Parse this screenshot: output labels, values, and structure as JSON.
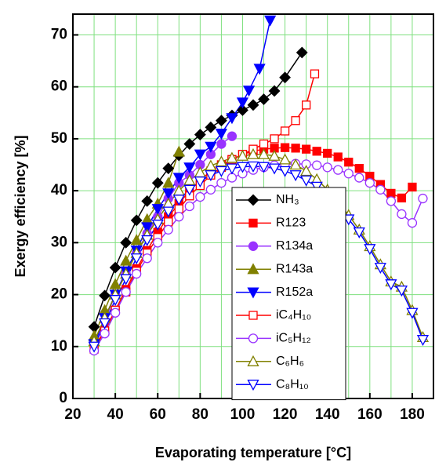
{
  "chart_data": {
    "type": "line",
    "xlabel": "Evaporating temperature [°C]",
    "ylabel": "Exergy efficiency [%]",
    "xlim": [
      20,
      190
    ],
    "ylim": [
      0,
      74
    ],
    "xticks": [
      20,
      40,
      60,
      80,
      100,
      120,
      140,
      160,
      180
    ],
    "yticks": [
      0,
      10,
      20,
      30,
      40,
      50,
      60,
      70
    ],
    "xgrid": [
      30,
      40,
      50,
      60,
      70,
      80,
      90,
      100,
      110,
      120,
      130,
      140,
      150,
      160,
      170,
      180
    ],
    "grid": true,
    "grid_color": "#7fe07f",
    "series": [
      {
        "name": "NH₃",
        "color": "#000000",
        "marker": "diamond",
        "filled": true,
        "x": [
          30,
          35,
          40,
          45,
          50,
          55,
          60,
          65,
          70,
          75,
          80,
          85,
          90,
          95,
          100,
          105,
          110,
          115,
          120,
          128
        ],
        "values": [
          13.8,
          19.8,
          25.2,
          30,
          34.3,
          38,
          41.5,
          44.3,
          46.8,
          49,
          50.8,
          52.2,
          53.5,
          54.5,
          55.5,
          56.5,
          57.6,
          59.2,
          61.8,
          66.6
        ]
      },
      {
        "name": "R123",
        "color": "#ff0000",
        "marker": "square",
        "filled": true,
        "x": [
          30,
          35,
          40,
          45,
          50,
          55,
          60,
          65,
          70,
          75,
          80,
          85,
          90,
          95,
          100,
          105,
          110,
          115,
          120,
          125,
          130,
          135,
          140,
          145,
          150,
          155,
          160,
          165,
          170,
          175,
          180
        ],
        "values": [
          10,
          13,
          17,
          21,
          25,
          28.5,
          32,
          35,
          37.5,
          40,
          42,
          43.8,
          45,
          46,
          47,
          47.6,
          48,
          48.2,
          48.3,
          48.2,
          48,
          47.6,
          47.2,
          46.5,
          45.5,
          44.3,
          42.8,
          41.2,
          39.5,
          38.6,
          40.7
        ]
      },
      {
        "name": "R134a",
        "color": "#9933ff",
        "marker": "circle",
        "filled": true,
        "x": [
          30,
          35,
          40,
          45,
          50,
          55,
          60,
          65,
          70,
          75,
          80,
          85,
          90,
          95
        ],
        "values": [
          10.5,
          15,
          20,
          24,
          28,
          31.8,
          35,
          38.5,
          41.5,
          43,
          45,
          47,
          49,
          50.5
        ]
      },
      {
        "name": "R143a",
        "color": "#808000",
        "marker": "triangle-up",
        "filled": true,
        "x": [
          30,
          35,
          40,
          45,
          50,
          55,
          60,
          65,
          70
        ],
        "values": [
          12,
          17,
          22,
          26.5,
          30.5,
          34.5,
          37.5,
          41.5,
          47.5
        ]
      },
      {
        "name": "R152a",
        "color": "#0000ff",
        "marker": "triangle-down",
        "filled": true,
        "x": [
          30,
          35,
          40,
          45,
          50,
          55,
          60,
          65,
          70,
          75,
          80,
          85,
          90,
          95,
          100,
          103,
          108,
          113
        ],
        "values": [
          10.5,
          15.5,
          20,
          24.5,
          28.5,
          33,
          36.5,
          39.5,
          42.5,
          44.5,
          47,
          48.5,
          51,
          54,
          57,
          59.3,
          63.5,
          72.8
        ]
      },
      {
        "name": "iC₄H₁₀",
        "color": "#ff0000",
        "marker": "square",
        "filled": false,
        "x": [
          30,
          35,
          40,
          45,
          50,
          55,
          60,
          65,
          70,
          75,
          80,
          85,
          90,
          95,
          100,
          105,
          110,
          115,
          120,
          125,
          130,
          134
        ],
        "values": [
          9.5,
          13,
          17,
          20.5,
          24.5,
          28,
          31,
          34,
          36.5,
          39,
          41,
          43,
          44.5,
          46,
          47,
          48,
          49,
          50,
          51.5,
          53.5,
          56.5,
          62.5
        ]
      },
      {
        "name": "iC₅H₁₂",
        "color": "#9933ff",
        "marker": "circle",
        "filled": false,
        "x": [
          30,
          35,
          40,
          45,
          50,
          55,
          60,
          65,
          70,
          75,
          80,
          85,
          90,
          95,
          100,
          105,
          110,
          115,
          120,
          125,
          130,
          135,
          140,
          145,
          150,
          155,
          160,
          165,
          170,
          175,
          180,
          185
        ],
        "values": [
          9.2,
          12.5,
          16.5,
          20.5,
          24,
          27,
          30,
          32.5,
          35,
          37,
          38.8,
          40.2,
          41.5,
          42.5,
          43.3,
          44,
          44.5,
          44.9,
          45.1,
          45.2,
          45.1,
          44.9,
          44.5,
          44,
          43.3,
          42.5,
          41.5,
          40.2,
          38,
          35.5,
          33.8,
          38.5
        ]
      },
      {
        "name": "C₆H₆",
        "color": "#808000",
        "marker": "triangle-up",
        "filled": false,
        "x": [
          30,
          35,
          40,
          45,
          50,
          55,
          60,
          65,
          70,
          75,
          80,
          85,
          90,
          95,
          100,
          105,
          110,
          115,
          120,
          125,
          130,
          135,
          140,
          145,
          150,
          155,
          160,
          165,
          170,
          175,
          180,
          185
        ],
        "values": [
          11,
          15.5,
          20,
          24,
          28,
          31.5,
          34.5,
          37.5,
          40,
          42,
          43.5,
          44.8,
          45.6,
          46.3,
          46.7,
          47,
          47,
          46.7,
          46,
          45,
          43.8,
          42.2,
          40.2,
          37.8,
          35.3,
          32.5,
          29.3,
          25.8,
          22.5,
          21.5,
          17,
          11.8
        ]
      },
      {
        "name": "C₈H₁₀",
        "color": "#0000ff",
        "marker": "triangle-down",
        "filled": false,
        "x": [
          30,
          35,
          40,
          45,
          50,
          55,
          60,
          65,
          70,
          75,
          80,
          85,
          90,
          95,
          100,
          105,
          110,
          115,
          120,
          125,
          130,
          135,
          140,
          145,
          150,
          155,
          160,
          165,
          170,
          175,
          180,
          185
        ],
        "values": [
          10,
          14.5,
          19,
          23,
          27,
          30.5,
          33.5,
          36,
          38.3,
          40.2,
          41.8,
          43,
          43.8,
          44.3,
          44.6,
          44.7,
          44.6,
          44.3,
          43.8,
          43,
          42,
          40.8,
          39,
          37,
          34.5,
          32,
          28.8,
          25.2,
          22,
          20.8,
          16.5,
          11.3
        ]
      }
    ]
  }
}
